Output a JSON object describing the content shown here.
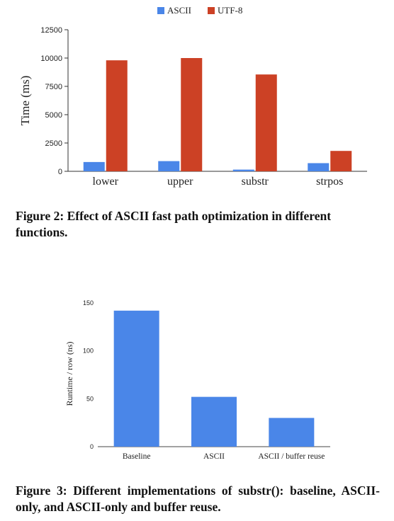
{
  "chart_data": [
    {
      "type": "bar",
      "categories": [
        "lower",
        "upper",
        "substr",
        "strpos"
      ],
      "series": [
        {
          "name": "ASCII",
          "color": "#4a86e8",
          "values": [
            820,
            900,
            150,
            720
          ]
        },
        {
          "name": "UTF-8",
          "color": "#cc4125",
          "values": [
            9800,
            10000,
            8550,
            1800
          ]
        }
      ],
      "ylabel": "Time (ms)",
      "xlabel": "",
      "ylim": [
        0,
        12500
      ],
      "yticks": [
        "0",
        "2500",
        "5000",
        "7500",
        "10000",
        "12500"
      ],
      "legend": "top-center",
      "grid": false
    },
    {
      "type": "bar",
      "categories": [
        "Baseline",
        "ASCII",
        "ASCII / buffer reuse"
      ],
      "series": [
        {
          "name": "",
          "color": "#4a86e8",
          "values": [
            142,
            52,
            30
          ]
        }
      ],
      "ylabel": "Runtime / row (ns)",
      "xlabel": "",
      "ylim": [
        0,
        150
      ],
      "yticks": [
        "0",
        "50",
        "100",
        "150"
      ],
      "grid": false
    }
  ],
  "captions": {
    "fig2": "Figure 2: Effect of ASCII fast path optimization in different functions.",
    "fig3": "Figure 3: Different implementations of substr(): baseline, ASCII-only, and ASCII-only and buffer reuse."
  }
}
